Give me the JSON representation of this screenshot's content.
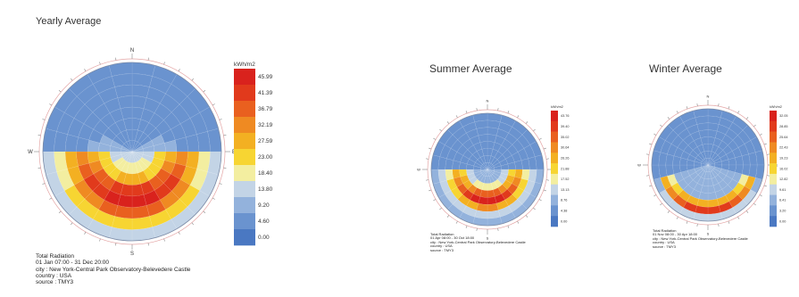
{
  "chart_data": [
    {
      "type": "heatmap",
      "title": "Yearly Average",
      "unit": "kWh/m2",
      "legend_ticks": [
        "45.99",
        "41.39",
        "36.79",
        "32.19",
        "27.59",
        "23.00",
        "18.40",
        "13.80",
        "9.20",
        "4.60",
        "0.00"
      ],
      "compass": [
        "N",
        "E",
        "S",
        "W"
      ],
      "caption": [
        "Total Radiation",
        "01 Jan 07:00 - 31 Dec 20:00",
        "city : New York-Central Park Observatory-Belevedere Castle",
        "country : USA",
        "source : TMY3"
      ]
    },
    {
      "type": "heatmap",
      "title": "Summer Average",
      "unit": "kWh/m2",
      "legend_ticks": [
        "43.76",
        "39.40",
        "35.02",
        "30.64",
        "26.26",
        "21.88",
        "17.52",
        "13.13",
        "8.76",
        "4.38",
        "0.00"
      ],
      "compass": [
        "N",
        "E",
        "S",
        "W"
      ],
      "caption": [
        "Total Radiation",
        "01 Apr 08:00 - 30 Oct 18:00",
        "city : New York-Central Park Observatory-Belevedere Castle",
        "country : USA",
        "source : TMY3"
      ]
    },
    {
      "type": "heatmap",
      "title": "Winter Average",
      "unit": "kWh/m2",
      "legend_ticks": [
        "32.05",
        "28.85",
        "25.64",
        "22.43",
        "19.23",
        "16.02",
        "12.82",
        "9.61",
        "6.41",
        "3.20",
        "0.00"
      ],
      "compass": [
        "N",
        "E",
        "S",
        "W"
      ],
      "caption": [
        "Total Radiation",
        "01 Nov 08:00 - 30 Apr 18:00",
        "city : New York-Central Park Observatory-Belevedere Castle",
        "country : USA",
        "source : TMY3"
      ]
    }
  ]
}
